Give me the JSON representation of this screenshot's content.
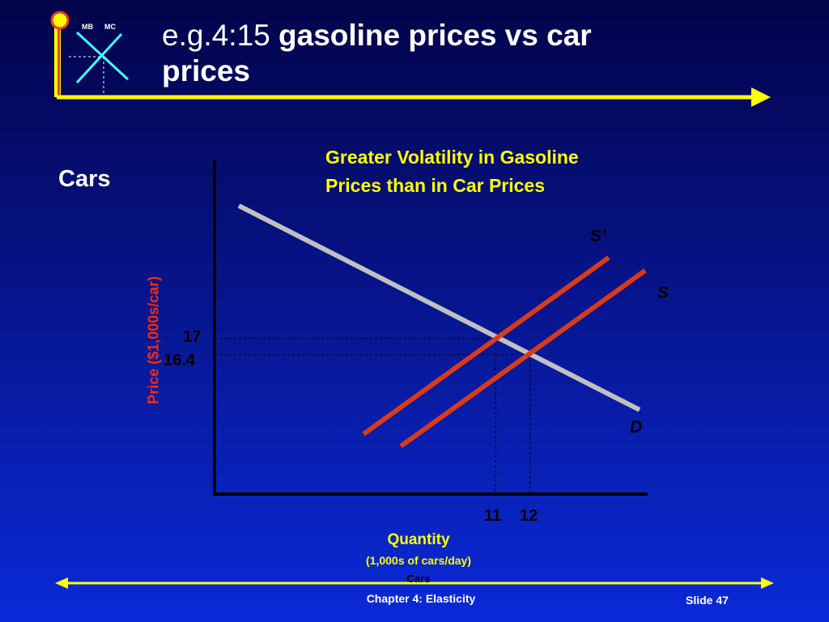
{
  "header": {
    "title_prefix": "e.g.4:15 ",
    "title_main": "gasoline prices vs car prices",
    "logo_mb": "MB",
    "logo_mc": "MC"
  },
  "panel_label": "Cars",
  "note": "Greater Volatility in Gasoline Prices than in Car Prices",
  "diagram": {
    "curves": {
      "demand": "D",
      "supply": "S",
      "supply_shifted": "S’"
    },
    "y_axis_label": "Price ($1,000s/car)",
    "y_ticks": [
      "17",
      "16.4"
    ],
    "x_ticks": [
      "11",
      "12"
    ],
    "x_axis_label": "Quantity",
    "x_axis_units": "(1,000s of cars/day)",
    "x_axis_sub": "Cars"
  },
  "colors": {
    "background_top": "#02044a",
    "background_bottom": "#0a2ad8",
    "demand": "#c0c0c0",
    "supply": "#d83a1a",
    "accent": "#ffff00"
  },
  "footer": {
    "chapter": "Chapter 4: Elasticity",
    "slide": "Slide 47"
  }
}
